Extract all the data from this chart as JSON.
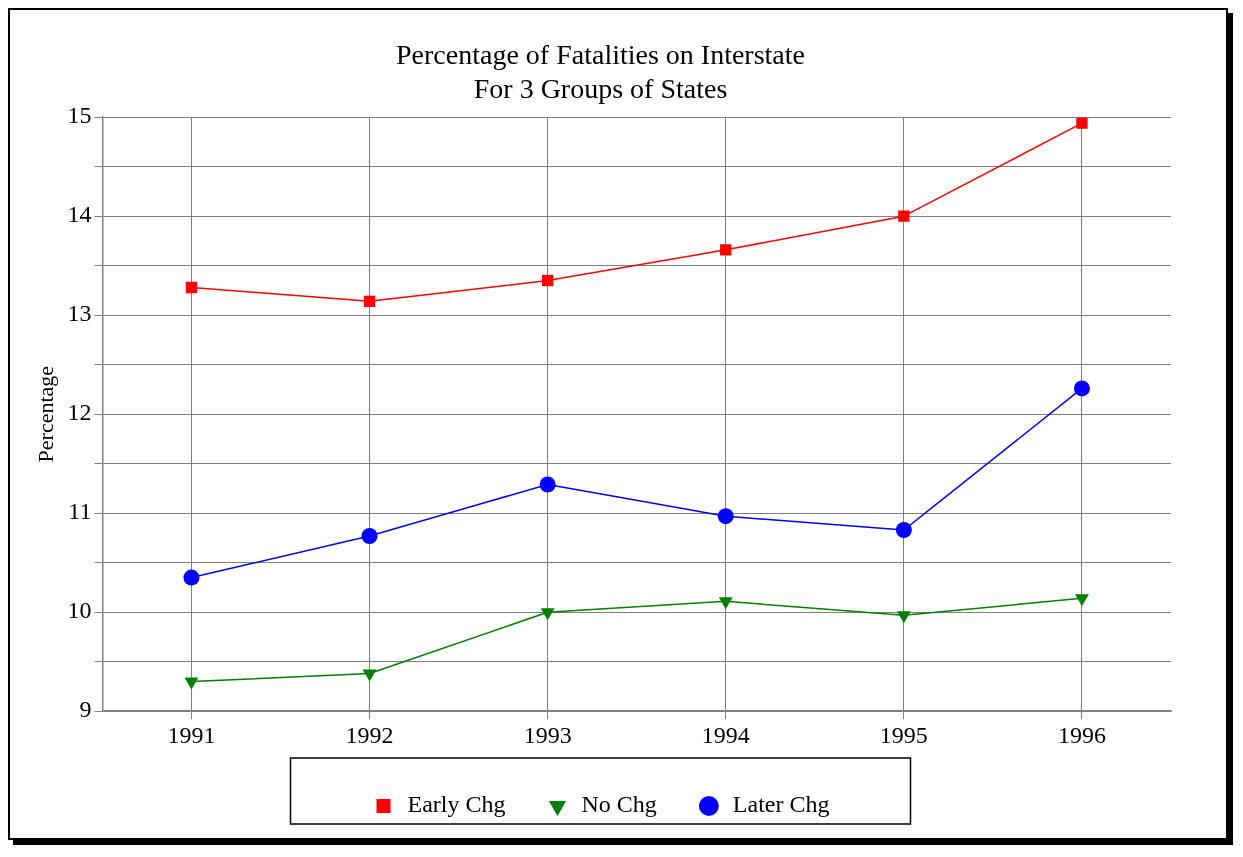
{
  "chart_data": {
    "type": "line",
    "title": [
      "Percentage of Fatalities on Interstate",
      "For 3 Groups of States"
    ],
    "ylabel": "Percentage",
    "categories": [
      "1991",
      "1992",
      "1993",
      "1994",
      "1995",
      "1996"
    ],
    "series": [
      {
        "name": "Early Chg",
        "color": "#ff0000",
        "marker": "square",
        "values": [
          13.28,
          13.14,
          13.35,
          13.66,
          14.0,
          14.94
        ]
      },
      {
        "name": "No Chg",
        "color": "#008000",
        "marker": "triangle",
        "values": [
          9.3,
          9.38,
          10.0,
          10.11,
          9.97,
          10.14
        ]
      },
      {
        "name": "Later Chg",
        "color": "#0000ff",
        "marker": "circle",
        "values": [
          10.35,
          10.77,
          11.29,
          10.97,
          10.83,
          12.26
        ]
      }
    ],
    "ylim": [
      9,
      15
    ],
    "yticks": [
      9,
      {
        "value": 9.5,
        "label": null
      },
      10,
      {
        "value": 10.5,
        "label": null
      },
      11,
      {
        "value": 11.5,
        "label": null
      },
      12,
      {
        "value": 12.5,
        "label": null
      },
      13,
      {
        "value": 13.5,
        "label": null
      },
      14,
      {
        "value": 14.5,
        "label": null
      },
      15
    ],
    "grid": true,
    "legend": "bottom",
    "line_style": "solid"
  }
}
